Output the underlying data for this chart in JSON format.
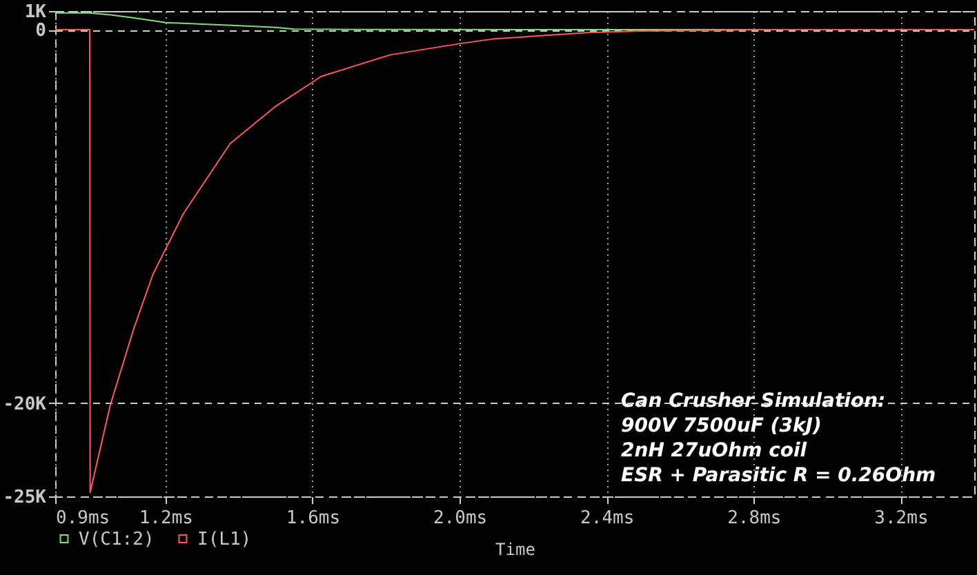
{
  "chart_data": {
    "type": "line",
    "xlabel": "Time",
    "annotations": [
      "Can Crusher Simulation:",
      "900V 7500uF (3kJ)",
      "2nH 27uOhm coil",
      "ESR + Parasitic R = 0.26Ohm"
    ],
    "xlim": [
      0.9,
      3.4
    ],
    "xticks": [
      {
        "value": 0.9,
        "label": "0.9ms"
      },
      {
        "value": 1.2,
        "label": "1.2ms"
      },
      {
        "value": 1.6,
        "label": "1.6ms"
      },
      {
        "value": 2.0,
        "label": "2.0ms"
      },
      {
        "value": 2.4,
        "label": "2.4ms"
      },
      {
        "value": 2.8,
        "label": "2.8ms"
      },
      {
        "value": 3.2,
        "label": "3.2ms"
      }
    ],
    "ylim": [
      -25000,
      1000
    ],
    "yticks": [
      {
        "value": 1000,
        "label": "1K"
      },
      0,
      {
        "value": -20000,
        "label": "-20K"
      },
      {
        "value": -25000,
        "label": "-25K"
      }
    ],
    "series": [
      {
        "name": "V(C1:2)",
        "color": "#7fe07a",
        "x": [
          0.9,
          0.994,
          1.05,
          1.125,
          1.2,
          1.3,
          1.39,
          1.5,
          1.55,
          1.65,
          1.8,
          2.2,
          2.85
        ],
        "values": [
          900,
          900,
          800,
          600,
          380,
          300,
          220,
          120,
          30,
          20,
          10,
          0,
          0
        ]
      },
      {
        "name": "I(L1)",
        "color": "#ff5a5a",
        "x": [
          0.9,
          0.994,
          0.995,
          1.05,
          1.114,
          1.166,
          1.249,
          1.376,
          1.5,
          1.624,
          1.811,
          1.999,
          2.09,
          2.186,
          2.35,
          2.49,
          2.84,
          3.4
        ],
        "values": [
          0,
          0,
          -24800,
          -20100,
          -16000,
          -13100,
          -9850,
          -6100,
          -4100,
          -2500,
          -1350,
          -750,
          -500,
          -370,
          -150,
          -70,
          0,
          0
        ]
      }
    ],
    "grid": true,
    "legend": "bottom left",
    "line_style": "solid",
    "marker": "none"
  }
}
